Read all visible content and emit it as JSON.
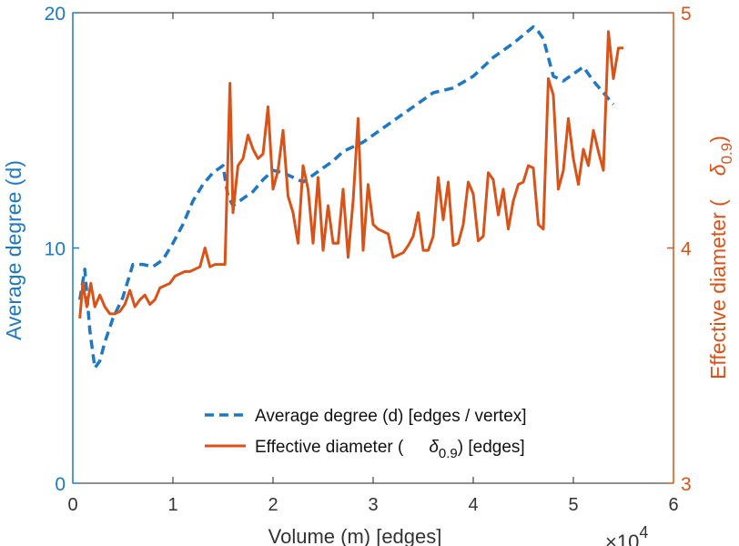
{
  "chart_data": {
    "type": "line",
    "xlabel": "Volume (m) [edges]",
    "x_multiplier": "×10",
    "x_multiplier_exp": "4",
    "xlim": [
      0,
      6
    ],
    "xticks": [
      "0",
      "1",
      "2",
      "3",
      "4",
      "5",
      "6"
    ],
    "left_axis": {
      "label": "Average degree (d)",
      "ylim": [
        0,
        20
      ],
      "ticks": [
        "0",
        "10",
        "20"
      ],
      "color": "#1f78c1"
    },
    "right_axis": {
      "label_main": "Effective diameter (",
      "label_symbol": "δ",
      "label_sub": "0.9",
      "label_close": ")",
      "ylim": [
        3,
        5
      ],
      "ticks": [
        "3",
        "4",
        "5"
      ],
      "color": "#d95319"
    },
    "legend": {
      "position": "bottom-right",
      "entries": [
        {
          "text": "Average degree (d) [edges / vertex]"
        },
        {
          "text_main": "Effective diameter (",
          "symbol": "δ",
          "sub": "0.9",
          "text_close": ") [edges]"
        }
      ]
    },
    "series": [
      {
        "axis": "left",
        "style": "dashed",
        "color": "#1f78c1",
        "x": [
          0.07,
          0.12,
          0.17,
          0.22,
          0.27,
          0.32,
          0.4,
          0.5,
          0.6,
          0.7,
          0.8,
          0.9,
          1.0,
          1.1,
          1.2,
          1.3,
          1.4,
          1.5,
          1.55,
          1.6,
          1.7,
          1.8,
          1.9,
          2.0,
          2.1,
          2.2,
          2.3,
          2.4,
          2.5,
          2.6,
          2.7,
          2.8,
          2.9,
          3.0,
          3.2,
          3.4,
          3.6,
          3.8,
          4.0,
          4.2,
          4.4,
          4.6,
          4.65,
          4.7,
          4.8,
          4.9,
          5.0,
          5.1,
          5.2,
          5.3,
          5.4
        ],
        "y": [
          7.8,
          9.1,
          6.5,
          4.9,
          5.2,
          6.0,
          7.0,
          7.9,
          9.3,
          9.3,
          9.2,
          9.5,
          10.2,
          11.0,
          12.0,
          12.7,
          13.2,
          13.5,
          12.2,
          11.8,
          12.1,
          12.4,
          12.9,
          13.3,
          13.2,
          13.0,
          12.8,
          13.1,
          13.4,
          13.7,
          14.1,
          14.3,
          14.5,
          14.8,
          15.4,
          16.0,
          16.6,
          16.8,
          17.3,
          18.1,
          18.7,
          19.4,
          19.2,
          18.9,
          17.3,
          17.1,
          17.4,
          17.7,
          17.1,
          16.6,
          16.1
        ]
      },
      {
        "axis": "right",
        "style": "solid",
        "color": "#d95319",
        "x": [
          0.07,
          0.1,
          0.14,
          0.18,
          0.22,
          0.27,
          0.32,
          0.37,
          0.42,
          0.47,
          0.52,
          0.57,
          0.62,
          0.67,
          0.72,
          0.77,
          0.82,
          0.87,
          0.92,
          0.97,
          1.02,
          1.07,
          1.12,
          1.17,
          1.22,
          1.27,
          1.32,
          1.37,
          1.42,
          1.47,
          1.52,
          1.57,
          1.6,
          1.65,
          1.7,
          1.75,
          1.8,
          1.85,
          1.9,
          1.95,
          2.0,
          2.05,
          2.1,
          2.15,
          2.2,
          2.25,
          2.3,
          2.35,
          2.4,
          2.45,
          2.5,
          2.55,
          2.6,
          2.65,
          2.7,
          2.75,
          2.8,
          2.85,
          2.9,
          2.95,
          3.0,
          3.05,
          3.1,
          3.15,
          3.2,
          3.25,
          3.3,
          3.35,
          3.4,
          3.45,
          3.5,
          3.55,
          3.6,
          3.65,
          3.7,
          3.75,
          3.8,
          3.85,
          3.9,
          3.95,
          4.0,
          4.05,
          4.1,
          4.15,
          4.2,
          4.25,
          4.3,
          4.35,
          4.4,
          4.45,
          4.5,
          4.55,
          4.6,
          4.65,
          4.7,
          4.75,
          4.8,
          4.85,
          4.9,
          4.95,
          5.0,
          5.05,
          5.1,
          5.15,
          5.2,
          5.25,
          5.3,
          5.35,
          5.4,
          5.45,
          5.5
        ],
        "y": [
          3.7,
          3.85,
          3.75,
          3.85,
          3.75,
          3.8,
          3.75,
          3.72,
          3.72,
          3.73,
          3.76,
          3.82,
          3.75,
          3.78,
          3.8,
          3.76,
          3.78,
          3.83,
          3.84,
          3.85,
          3.88,
          3.89,
          3.9,
          3.9,
          3.91,
          3.92,
          4.0,
          3.92,
          3.93,
          3.93,
          3.93,
          4.7,
          4.15,
          4.35,
          4.38,
          4.48,
          4.42,
          4.38,
          4.4,
          4.6,
          4.25,
          4.33,
          4.5,
          4.22,
          4.15,
          4.02,
          4.35,
          4.25,
          4.02,
          4.3,
          3.99,
          4.18,
          4.02,
          4.02,
          4.25,
          3.96,
          4.2,
          4.55,
          3.99,
          4.27,
          4.1,
          4.08,
          4.07,
          4.06,
          3.96,
          3.97,
          3.98,
          4.01,
          4.05,
          4.15,
          3.99,
          3.99,
          4.05,
          4.3,
          4.12,
          4.28,
          4.01,
          4.02,
          4.1,
          4.28,
          4.23,
          4.03,
          4.05,
          4.32,
          4.29,
          4.14,
          4.25,
          4.08,
          4.2,
          4.27,
          4.28,
          4.35,
          4.34,
          4.1,
          4.08,
          4.72,
          4.65,
          4.25,
          4.33,
          4.55,
          4.38,
          4.27,
          4.42,
          4.35,
          4.5,
          4.41,
          4.33,
          4.92,
          4.72,
          4.85,
          4.85
        ]
      }
    ]
  }
}
